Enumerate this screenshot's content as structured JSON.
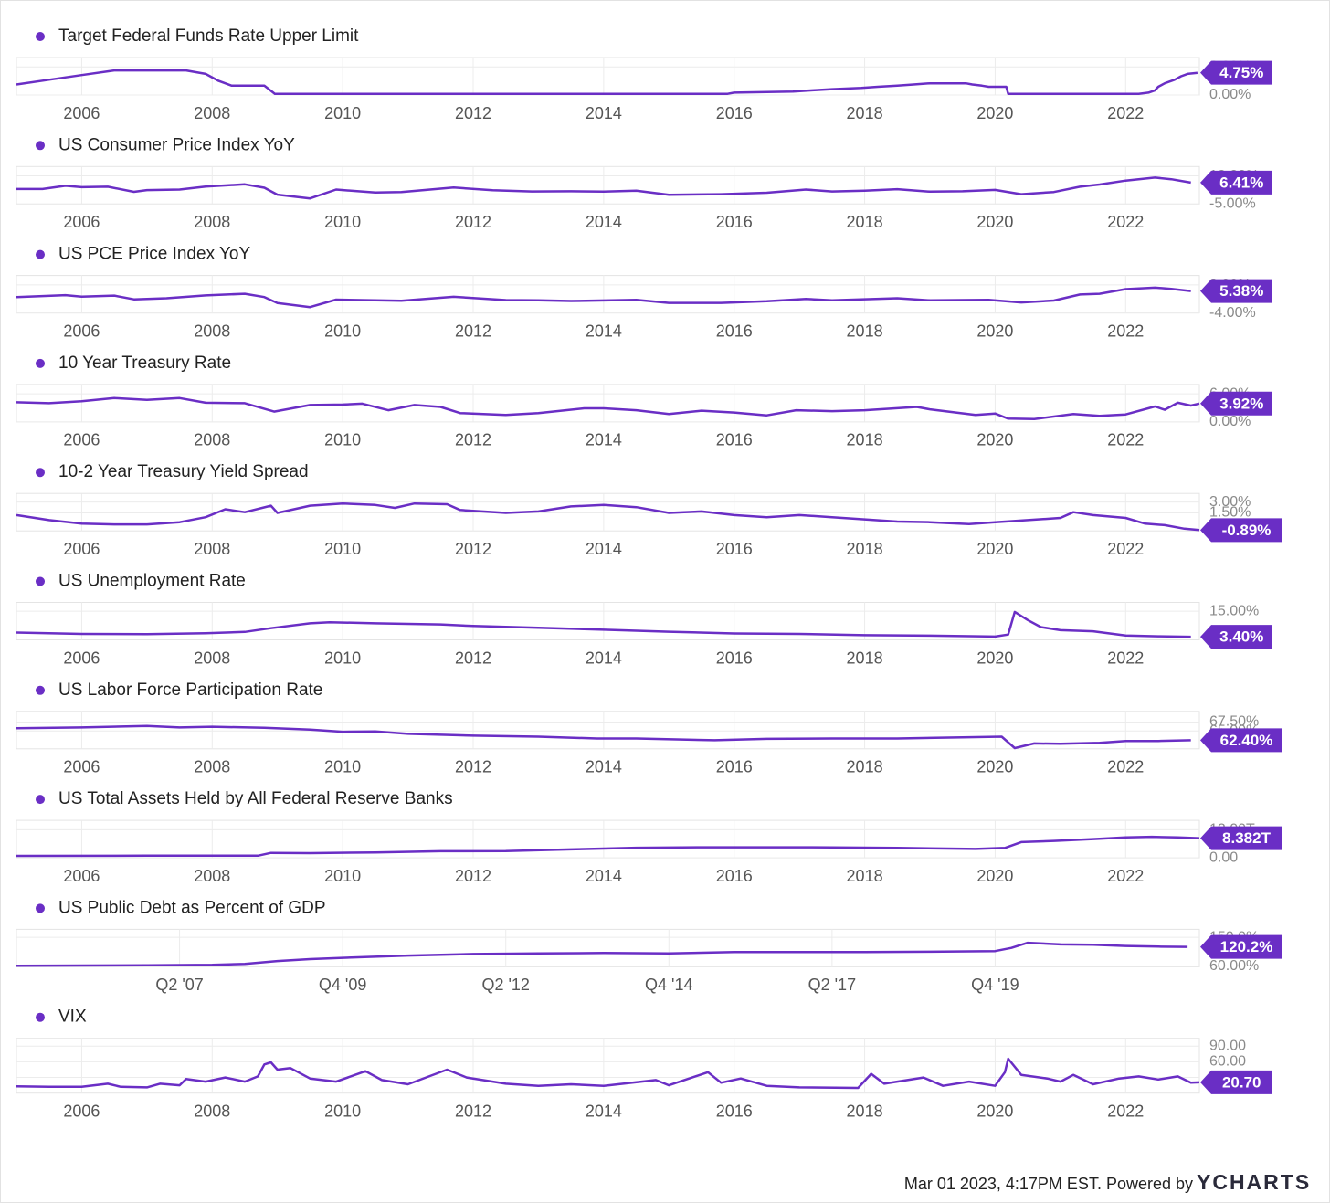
{
  "chart_data": [
    {
      "type": "line",
      "title": "Target Federal Funds Rate Upper Limit",
      "color": "#6a2ec5",
      "x": [
        2005.0,
        2005.5,
        2006.0,
        2006.5,
        2007.0,
        2007.6,
        2007.9,
        2008.1,
        2008.3,
        2008.8,
        2008.96,
        2015.9,
        2016.0,
        2016.9,
        2017.2,
        2017.5,
        2017.95,
        2018.2,
        2018.5,
        2018.75,
        2019.0,
        2019.55,
        2019.65,
        2019.8,
        2019.9,
        2020.17,
        2020.2,
        2022.2,
        2022.35,
        2022.45,
        2022.5,
        2022.6,
        2022.75,
        2022.85,
        2022.95,
        2023.1
      ],
      "values": [
        2.25,
        3.25,
        4.25,
        5.25,
        5.25,
        5.25,
        4.5,
        3.0,
        2.0,
        2.0,
        0.25,
        0.25,
        0.5,
        0.75,
        1.0,
        1.25,
        1.5,
        1.75,
        2.0,
        2.25,
        2.5,
        2.5,
        2.25,
        2.0,
        1.75,
        1.75,
        0.25,
        0.25,
        0.5,
        1.0,
        1.75,
        2.5,
        3.25,
        4.0,
        4.5,
        4.75
      ],
      "xlim": [
        2005,
        2023.13
      ],
      "xticks": [
        2006,
        2008,
        2010,
        2012,
        2014,
        2016,
        2018,
        2020,
        2022
      ],
      "ylim": [
        0,
        8
      ],
      "yticks": [
        {
          "value": 0,
          "label": "0.00%"
        },
        {
          "value": 6,
          "label": "6.00%"
        }
      ],
      "current": {
        "value": 4.75,
        "label": "4.75%"
      }
    },
    {
      "type": "line",
      "title": "US Consumer Price Index YoY",
      "color": "#6a2ec5",
      "x": [
        2005.0,
        2005.4,
        2005.75,
        2006.0,
        2006.4,
        2006.8,
        2007.0,
        2007.5,
        2007.9,
        2008.5,
        2008.8,
        2009.0,
        2009.5,
        2009.9,
        2010.5,
        2010.9,
        2011.7,
        2012.3,
        2012.9,
        2013.5,
        2014.0,
        2014.5,
        2015.0,
        2015.8,
        2016.5,
        2017.1,
        2017.5,
        2018.0,
        2018.5,
        2019.0,
        2019.5,
        2020.0,
        2020.4,
        2020.9,
        2021.3,
        2021.6,
        2022.0,
        2022.45,
        2022.7,
        2023.0
      ],
      "values": [
        3.0,
        3.0,
        4.7,
        4.0,
        4.2,
        1.5,
        2.4,
        2.7,
        4.3,
        5.5,
        3.7,
        0.0,
        -2.0,
        2.7,
        1.1,
        1.4,
        3.8,
        2.3,
        1.7,
        1.8,
        1.6,
        2.1,
        -0.1,
        0.2,
        1.0,
        2.7,
        1.7,
        2.1,
        2.9,
        1.6,
        1.8,
        2.5,
        0.2,
        1.4,
        4.2,
        5.4,
        7.5,
        9.1,
        8.2,
        6.41
      ],
      "xlim": [
        2005,
        2023.13
      ],
      "xticks": [
        2006,
        2008,
        2010,
        2012,
        2014,
        2016,
        2018,
        2020,
        2022
      ],
      "ylim": [
        -5,
        15
      ],
      "yticks": [
        {
          "value": -5,
          "label": "-5.00%"
        },
        {
          "value": 10,
          "label": "10.00%"
        }
      ],
      "current": {
        "value": 6.41,
        "label": "6.41%"
      }
    },
    {
      "type": "line",
      "title": "US PCE Price Index YoY",
      "color": "#6a2ec5",
      "x": [
        2005.0,
        2005.75,
        2006.0,
        2006.5,
        2006.8,
        2007.3,
        2007.9,
        2008.5,
        2008.8,
        2009.0,
        2009.5,
        2009.9,
        2010.5,
        2010.9,
        2011.7,
        2012.5,
        2013.0,
        2013.5,
        2014.5,
        2015.0,
        2015.8,
        2016.5,
        2017.1,
        2017.5,
        2018.5,
        2019.0,
        2019.9,
        2020.4,
        2020.9,
        2021.3,
        2021.6,
        2022.0,
        2022.45,
        2022.7,
        2023.0
      ],
      "values": [
        2.8,
        3.6,
        3.0,
        3.4,
        1.8,
        2.3,
        3.5,
        4.2,
        2.8,
        0.2,
        -1.5,
        1.7,
        1.4,
        1.2,
        2.9,
        1.5,
        1.4,
        1.1,
        1.6,
        0.3,
        0.3,
        1.0,
        2.0,
        1.4,
        2.3,
        1.4,
        1.6,
        0.5,
        1.3,
        3.9,
        4.2,
        6.2,
        6.8,
        6.3,
        5.38
      ],
      "xlim": [
        2005,
        2023.13
      ],
      "xticks": [
        2006,
        2008,
        2010,
        2012,
        2014,
        2016,
        2018,
        2020,
        2022
      ],
      "ylim": [
        -4,
        12
      ],
      "yticks": [
        {
          "value": -4,
          "label": "-4.00%"
        },
        {
          "value": 8,
          "label": "8.00%"
        }
      ],
      "current": {
        "value": 5.38,
        "label": "5.38%"
      }
    },
    {
      "type": "line",
      "title": "10 Year Treasury Rate",
      "color": "#6a2ec5",
      "x": [
        2005.0,
        2005.5,
        2006.0,
        2006.5,
        2007.0,
        2007.5,
        2007.9,
        2008.5,
        2008.95,
        2009.5,
        2010.0,
        2010.3,
        2010.7,
        2011.1,
        2011.5,
        2011.8,
        2012.5,
        2013.0,
        2013.7,
        2014.0,
        2014.5,
        2015.0,
        2015.5,
        2016.0,
        2016.5,
        2016.95,
        2017.5,
        2018.0,
        2018.8,
        2019.0,
        2019.7,
        2020.0,
        2020.2,
        2020.6,
        2021.2,
        2021.6,
        2022.0,
        2022.45,
        2022.6,
        2022.8,
        2023.0,
        2023.13
      ],
      "values": [
        4.2,
        4.0,
        4.4,
        5.1,
        4.7,
        5.1,
        4.1,
        4.0,
        2.2,
        3.6,
        3.7,
        3.9,
        2.5,
        3.6,
        3.2,
        1.9,
        1.5,
        1.9,
        2.9,
        2.9,
        2.5,
        1.7,
        2.4,
        2.0,
        1.4,
        2.5,
        2.3,
        2.5,
        3.2,
        2.7,
        1.5,
        1.8,
        0.7,
        0.6,
        1.7,
        1.3,
        1.6,
        3.3,
        2.6,
        4.1,
        3.5,
        3.92
      ],
      "xlim": [
        2005,
        2023.13
      ],
      "xticks": [
        2006,
        2008,
        2010,
        2012,
        2014,
        2016,
        2018,
        2020,
        2022
      ],
      "ylim": [
        0,
        8
      ],
      "yticks": [
        {
          "value": 0,
          "label": "0.00%"
        },
        {
          "value": 6,
          "label": "6.00%"
        }
      ],
      "current": {
        "value": 3.92,
        "label": "3.92%"
      }
    },
    {
      "type": "line",
      "title": "10-2 Year Treasury Yield Spread",
      "color": "#6a2ec5",
      "x": [
        2005.0,
        2005.5,
        2006.0,
        2006.5,
        2007.0,
        2007.5,
        2007.9,
        2008.2,
        2008.5,
        2008.9,
        2009.0,
        2009.5,
        2010.0,
        2010.5,
        2010.8,
        2011.1,
        2011.6,
        2011.8,
        2012.5,
        2013.0,
        2013.5,
        2014.0,
        2014.5,
        2015.0,
        2015.5,
        2016.0,
        2016.5,
        2017.0,
        2017.5,
        2018.0,
        2018.5,
        2019.0,
        2019.6,
        2020.0,
        2020.5,
        2021.0,
        2021.2,
        2021.5,
        2022.0,
        2022.3,
        2022.6,
        2022.9,
        2023.13
      ],
      "values": [
        1.2,
        0.5,
        0.0,
        -0.1,
        -0.1,
        0.2,
        0.9,
        2.0,
        1.6,
        2.5,
        1.5,
        2.5,
        2.8,
        2.6,
        2.2,
        2.8,
        2.7,
        1.9,
        1.5,
        1.7,
        2.4,
        2.6,
        2.3,
        1.5,
        1.7,
        1.2,
        0.9,
        1.2,
        0.9,
        0.6,
        0.3,
        0.2,
        -0.05,
        0.2,
        0.5,
        0.8,
        1.6,
        1.2,
        0.8,
        0.0,
        -0.2,
        -0.7,
        -0.89
      ],
      "xlim": [
        2005,
        2023.13
      ],
      "xticks": [
        2006,
        2008,
        2010,
        2012,
        2014,
        2016,
        2018,
        2020,
        2022
      ],
      "ylim": [
        -1,
        4.2
      ],
      "yticks": [
        {
          "value": 1.5,
          "label": "1.50%"
        },
        {
          "value": 3,
          "label": "3.00%"
        }
      ],
      "current": {
        "value": -0.89,
        "label": "-0.89%"
      }
    },
    {
      "type": "line",
      "title": "US Unemployment Rate",
      "color": "#6a2ec5",
      "x": [
        2005.0,
        2006.0,
        2007.0,
        2007.9,
        2008.5,
        2008.9,
        2009.5,
        2009.8,
        2010.5,
        2011.5,
        2012.0,
        2013.0,
        2014.0,
        2015.0,
        2016.0,
        2017.0,
        2018.0,
        2019.0,
        2020.0,
        2020.2,
        2020.3,
        2020.5,
        2020.7,
        2021.0,
        2021.5,
        2022.0,
        2022.5,
        2023.0
      ],
      "values": [
        5.3,
        4.7,
        4.6,
        5.0,
        5.6,
        7.3,
        9.5,
        10.0,
        9.5,
        9.0,
        8.3,
        7.5,
        6.6,
        5.7,
        4.9,
        4.7,
        4.1,
        3.9,
        3.5,
        4.4,
        14.7,
        11.0,
        7.8,
        6.4,
        5.9,
        4.0,
        3.6,
        3.4
      ],
      "xlim": [
        2005,
        2023.13
      ],
      "xticks": [
        2006,
        2008,
        2010,
        2012,
        2014,
        2016,
        2018,
        2020,
        2022
      ],
      "ylim": [
        2,
        19
      ],
      "yticks": [
        {
          "value": 15,
          "label": "15.00%"
        }
      ],
      "current": {
        "value": 3.4,
        "label": "3.40%"
      }
    },
    {
      "type": "line",
      "title": "US Labor Force Participation Rate",
      "color": "#6a2ec5",
      "x": [
        2005.0,
        2006.0,
        2007.0,
        2007.5,
        2008.0,
        2008.8,
        2009.5,
        2010.0,
        2010.5,
        2011.0,
        2012.0,
        2013.0,
        2013.9,
        2014.5,
        2015.7,
        2016.5,
        2017.5,
        2018.5,
        2019.5,
        2020.1,
        2020.3,
        2020.6,
        2021.0,
        2021.6,
        2022.0,
        2022.5,
        2023.0
      ],
      "values": [
        65.8,
        66.0,
        66.4,
        66.0,
        66.2,
        65.9,
        65.4,
        64.8,
        64.9,
        64.2,
        63.7,
        63.4,
        62.9,
        62.9,
        62.4,
        62.8,
        62.9,
        62.9,
        63.2,
        63.4,
        60.2,
        61.5,
        61.4,
        61.7,
        62.2,
        62.2,
        62.4
      ],
      "xlim": [
        2005,
        2023.13
      ],
      "xticks": [
        2006,
        2008,
        2010,
        2012,
        2014,
        2016,
        2018,
        2020,
        2022
      ],
      "ylim": [
        60,
        70.5
      ],
      "yticks": [
        {
          "value": 65,
          "label": "65.00%"
        },
        {
          "value": 67.5,
          "label": "67.50%"
        }
      ],
      "current": {
        "value": 62.4,
        "label": "62.40%"
      }
    },
    {
      "type": "line",
      "title": "US Total Assets Held by All Federal Reserve Banks",
      "color": "#6a2ec5",
      "x": [
        2005.0,
        2007.0,
        2008.7,
        2008.9,
        2009.5,
        2010.5,
        2011.5,
        2012.5,
        2013.5,
        2014.5,
        2015.5,
        2017.5,
        2018.5,
        2019.7,
        2020.15,
        2020.4,
        2020.9,
        2021.5,
        2022.0,
        2022.4,
        2022.8,
        2023.13
      ],
      "values": [
        0.82,
        0.88,
        0.9,
        2.1,
        2.0,
        2.3,
        2.8,
        2.9,
        3.6,
        4.3,
        4.5,
        4.45,
        4.2,
        3.8,
        4.2,
        6.7,
        7.2,
        8.0,
        8.75,
        8.96,
        8.7,
        8.382
      ],
      "xlim": [
        2005,
        2023.13
      ],
      "xticks": [
        2006,
        2008,
        2010,
        2012,
        2014,
        2016,
        2018,
        2020,
        2022
      ],
      "ylim": [
        0,
        16
      ],
      "yticks": [
        {
          "value": 0,
          "label": "0.00"
        },
        {
          "value": 12,
          "label": "12.00T"
        }
      ],
      "current": {
        "value": 8.382,
        "label": "8.382T"
      }
    },
    {
      "type": "line",
      "title": "US Public Debt as Percent of GDP",
      "color": "#6a2ec5",
      "x": [
        2005.0,
        2006.0,
        2007.0,
        2008.0,
        2008.5,
        2009.0,
        2009.5,
        2010.0,
        2011.0,
        2012.0,
        2013.0,
        2014.0,
        2015.0,
        2016.0,
        2017.0,
        2018.0,
        2019.0,
        2020.0,
        2020.25,
        2020.5,
        2021.0,
        2021.5,
        2022.0,
        2022.5,
        2022.95
      ],
      "values": [
        61.5,
        62,
        62.5,
        64,
        67,
        76,
        82,
        86,
        93,
        98,
        100,
        101,
        100,
        104,
        104,
        104,
        105,
        107,
        117,
        133,
        128,
        127,
        123,
        121,
        120.2
      ],
      "xlim": [
        2005,
        2023.13
      ],
      "xticks": [
        {
          "value": 2007.5,
          "label": "Q2 '07"
        },
        {
          "value": 2010.0,
          "label": "Q4 '09"
        },
        {
          "value": 2012.5,
          "label": "Q2 '12"
        },
        {
          "value": 2015.0,
          "label": "Q4 '14"
        },
        {
          "value": 2017.5,
          "label": "Q2 '17"
        },
        {
          "value": 2020.0,
          "label": "Q4 '19"
        }
      ],
      "ylim": [
        58,
        175
      ],
      "yticks": [
        {
          "value": 60,
          "label": "60.00%"
        },
        {
          "value": 150,
          "label": "150.0%"
        }
      ],
      "current": {
        "value": 120.2,
        "label": "120.2%"
      }
    },
    {
      "type": "line",
      "title": "VIX",
      "color": "#6a2ec5",
      "x": [
        2005.0,
        2005.5,
        2006.0,
        2006.4,
        2006.6,
        2007.0,
        2007.2,
        2007.5,
        2007.6,
        2007.9,
        2008.2,
        2008.5,
        2008.7,
        2008.8,
        2008.9,
        2009.0,
        2009.2,
        2009.5,
        2009.9,
        2010.35,
        2010.6,
        2011.0,
        2011.6,
        2011.9,
        2012.5,
        2013.0,
        2013.5,
        2014.0,
        2014.8,
        2015.0,
        2015.6,
        2015.8,
        2016.1,
        2016.5,
        2017.0,
        2017.9,
        2018.1,
        2018.3,
        2018.9,
        2019.2,
        2019.6,
        2020.0,
        2020.15,
        2020.2,
        2020.4,
        2020.8,
        2021.0,
        2021.2,
        2021.5,
        2021.9,
        2022.2,
        2022.5,
        2022.8,
        2023.0,
        2023.13
      ],
      "values": [
        13,
        12,
        12,
        18,
        12,
        11,
        18,
        15,
        27,
        22,
        30,
        22,
        32,
        55,
        59,
        45,
        48,
        28,
        22,
        42,
        25,
        17,
        45,
        30,
        18,
        14,
        17,
        14,
        25,
        15,
        40,
        20,
        28,
        14,
        11,
        10,
        37,
        18,
        30,
        14,
        22,
        14,
        40,
        66,
        35,
        28,
        22,
        35,
        17,
        28,
        32,
        26,
        32,
        20,
        20.7
      ],
      "xlim": [
        2005,
        2023.13
      ],
      "xticks": [
        2006,
        2008,
        2010,
        2012,
        2014,
        2016,
        2018,
        2020,
        2022
      ],
      "ylim": [
        0,
        105
      ],
      "yticks": [
        {
          "value": 30,
          "label": "30.00"
        },
        {
          "value": 60,
          "label": "60.00"
        },
        {
          "value": 90,
          "label": "90.00"
        }
      ],
      "current": {
        "value": 20.7,
        "label": "20.70"
      }
    }
  ],
  "footer": {
    "timestamp": "Mar 01 2023, 4:17PM EST. Powered by",
    "brand": "YCHARTS"
  }
}
